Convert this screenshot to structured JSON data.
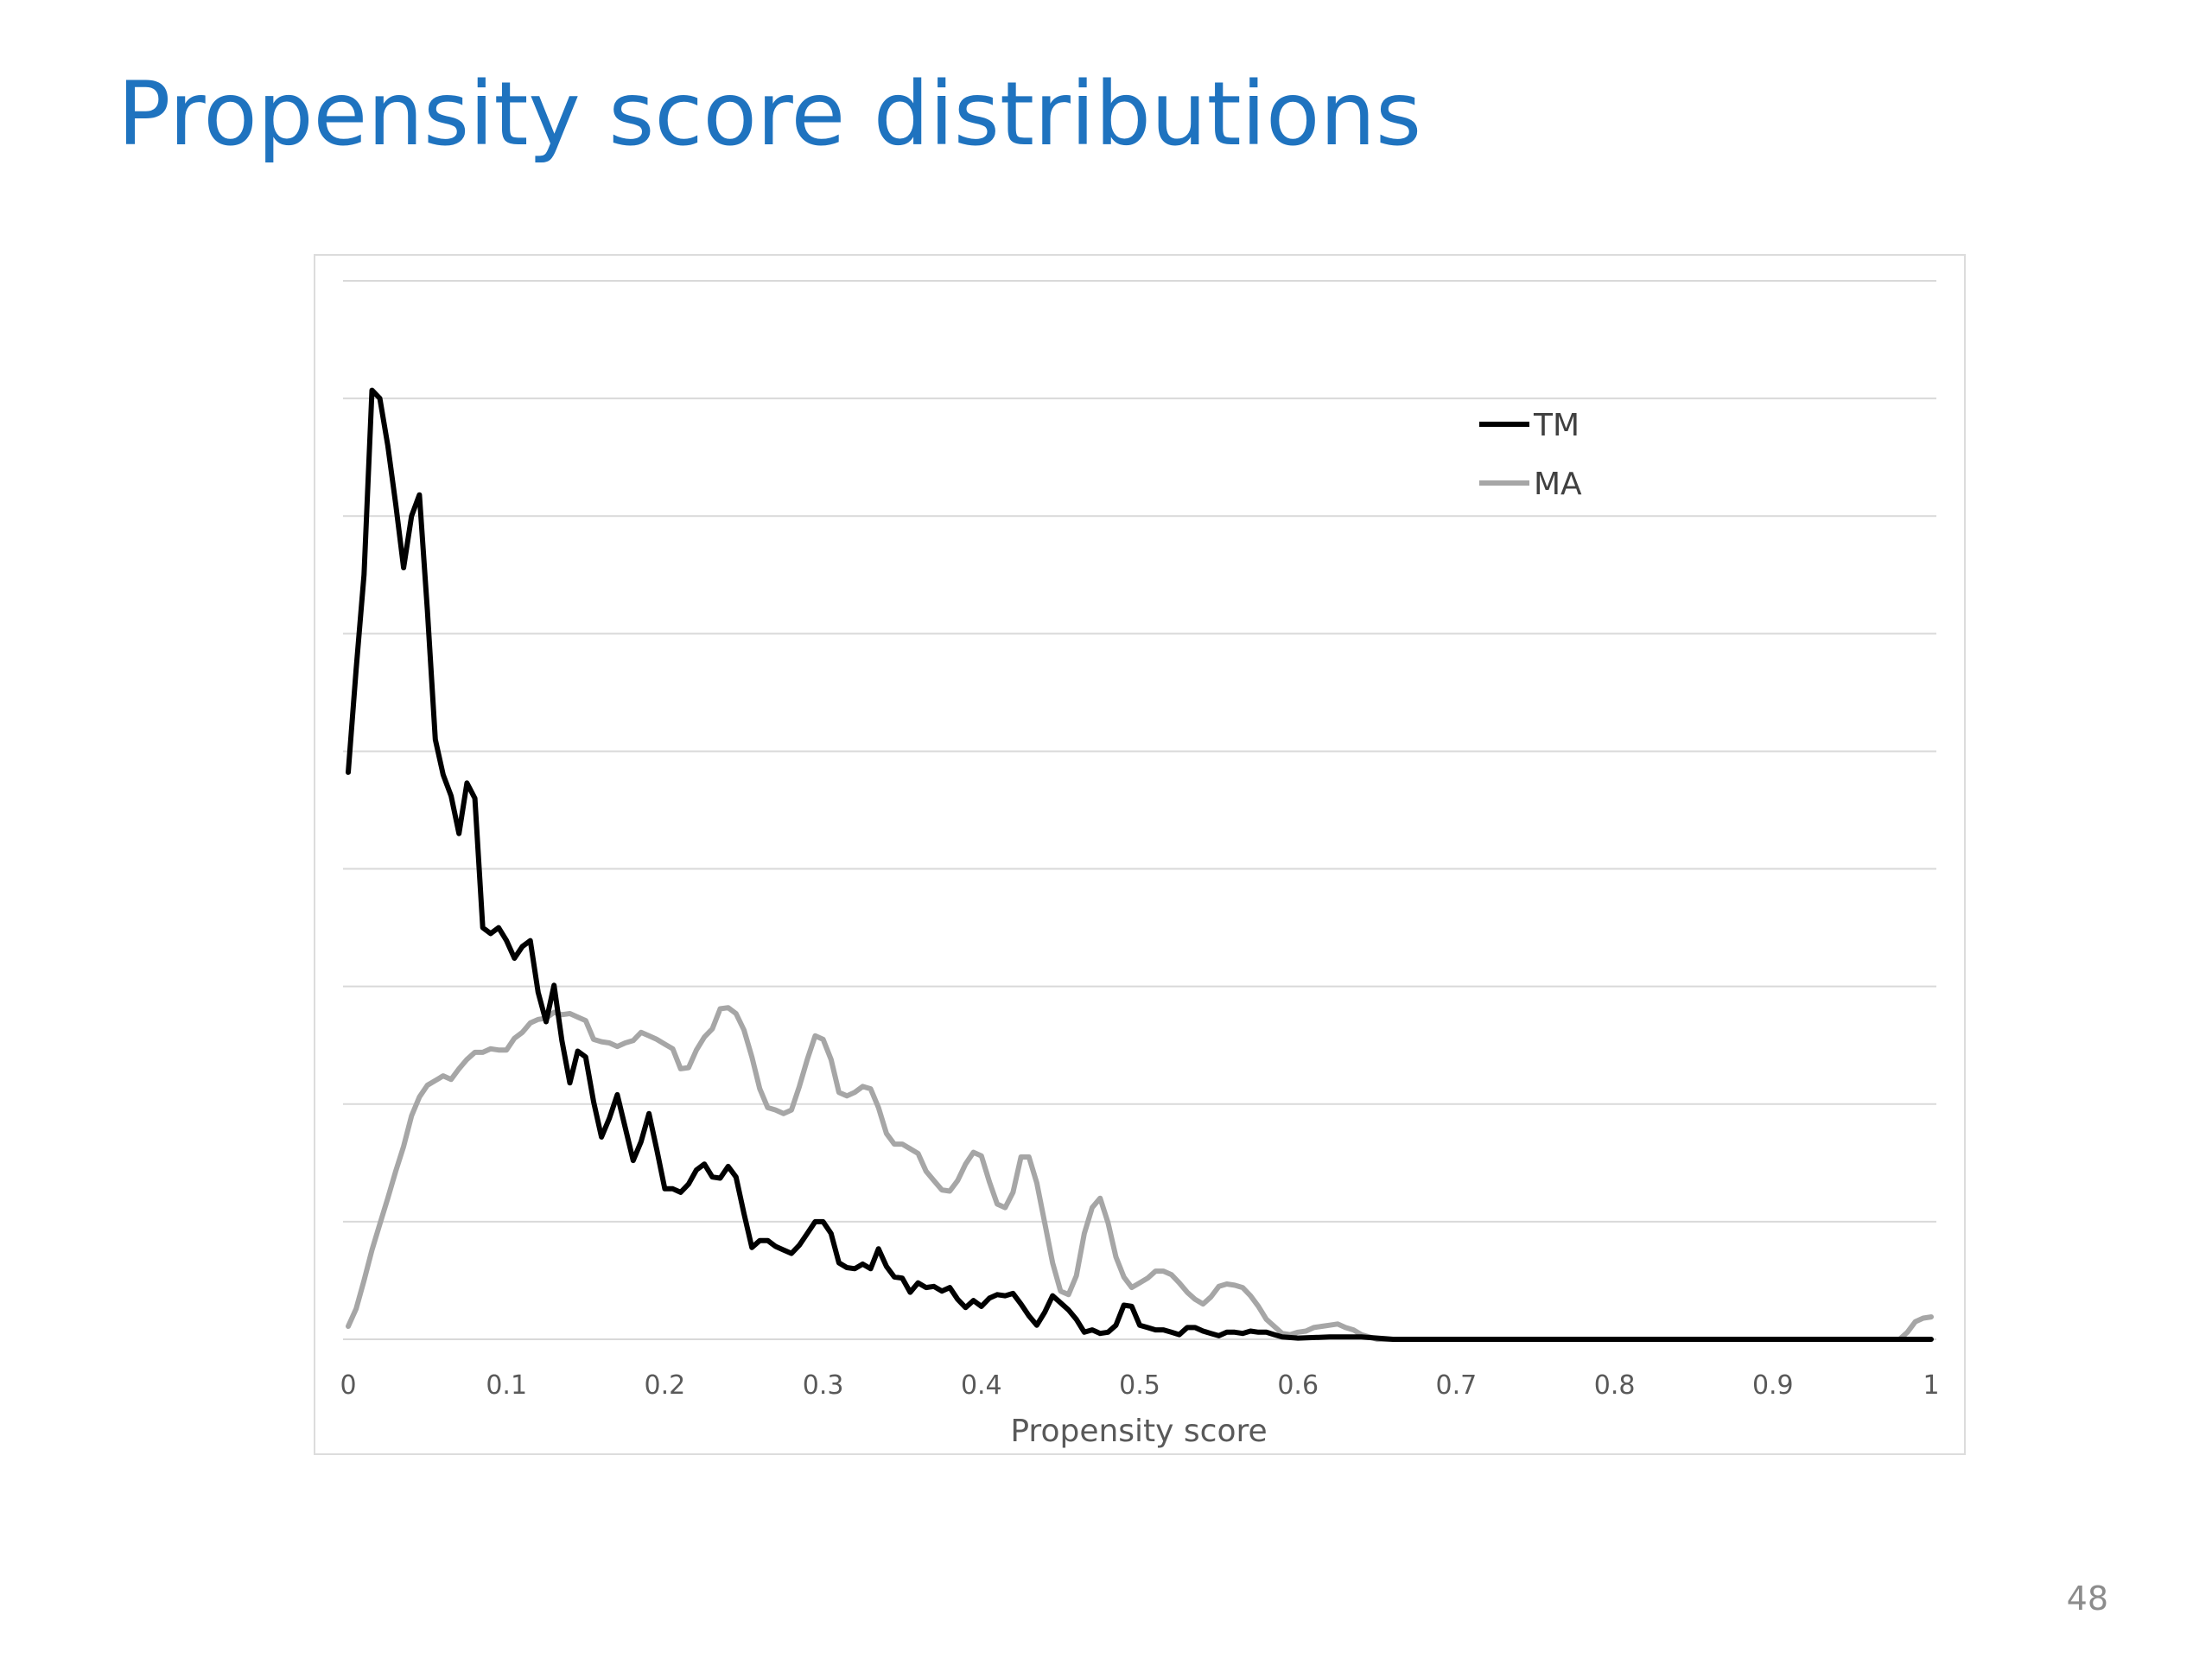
{
  "slide": {
    "title": "Propensity score distributions",
    "page_number": "48"
  },
  "colors": {
    "title": "#1f73bf",
    "series_tm": "#000000",
    "series_ma": "#a6a6a6",
    "gridline": "#d9d9d9",
    "axis_text": "#595959"
  },
  "chart_data": {
    "type": "line",
    "title": "",
    "xlabel": "Propensity score",
    "ylabel": "",
    "xlim": [
      0,
      1
    ],
    "ylim": [
      0,
      9
    ],
    "y_gridlines": [
      0,
      1,
      2,
      3,
      4,
      5,
      6,
      7,
      8,
      9
    ],
    "y_tick_labels_shown": false,
    "grid": "horizontal",
    "legend_position": "top-right",
    "x_ticks": [
      "0",
      "0.1",
      "0.2",
      "0.3",
      "0.4",
      "0.5",
      "0.6",
      "0.7",
      "0.8",
      "0.9",
      "1"
    ],
    "x_tick_values": [
      0,
      0.1,
      0.2,
      0.3,
      0.4,
      0.5,
      0.6,
      0.7,
      0.8,
      0.9,
      1
    ],
    "series": [
      {
        "name": "TM",
        "color": "#000000",
        "x": [
          0,
          0.005,
          0.01,
          0.015,
          0.02,
          0.025,
          0.03,
          0.035,
          0.04,
          0.045,
          0.05,
          0.055,
          0.06,
          0.065,
          0.07,
          0.075,
          0.08,
          0.085,
          0.09,
          0.095,
          0.1,
          0.105,
          0.11,
          0.115,
          0.12,
          0.125,
          0.13,
          0.135,
          0.14,
          0.145,
          0.15,
          0.155,
          0.16,
          0.165,
          0.17,
          0.175,
          0.18,
          0.185,
          0.19,
          0.195,
          0.2,
          0.205,
          0.21,
          0.215,
          0.22,
          0.225,
          0.23,
          0.235,
          0.24,
          0.245,
          0.25,
          0.255,
          0.26,
          0.265,
          0.27,
          0.275,
          0.28,
          0.285,
          0.29,
          0.295,
          0.3,
          0.305,
          0.31,
          0.315,
          0.32,
          0.325,
          0.33,
          0.335,
          0.34,
          0.345,
          0.35,
          0.355,
          0.36,
          0.365,
          0.37,
          0.375,
          0.38,
          0.385,
          0.39,
          0.395,
          0.4,
          0.405,
          0.41,
          0.415,
          0.42,
          0.425,
          0.43,
          0.435,
          0.44,
          0.445,
          0.45,
          0.455,
          0.46,
          0.465,
          0.47,
          0.475,
          0.48,
          0.485,
          0.49,
          0.495,
          0.5,
          0.505,
          0.51,
          0.515,
          0.52,
          0.525,
          0.53,
          0.535,
          0.54,
          0.545,
          0.55,
          0.555,
          0.56,
          0.565,
          0.57,
          0.575,
          0.58,
          0.585,
          0.59,
          0.6,
          0.62,
          0.64,
          0.66,
          0.7,
          0.8,
          0.9,
          1.0
        ],
        "values": [
          4.82,
          5.7,
          6.5,
          8.07,
          8.0,
          7.6,
          7.1,
          6.56,
          7.0,
          7.18,
          6.2,
          5.1,
          4.8,
          4.62,
          4.3,
          4.73,
          4.6,
          3.5,
          3.45,
          3.5,
          3.39,
          3.24,
          3.34,
          3.39,
          2.95,
          2.7,
          3.01,
          2.54,
          2.18,
          2.45,
          2.4,
          2.02,
          1.72,
          1.88,
          2.08,
          1.8,
          1.52,
          1.68,
          1.92,
          1.61,
          1.28,
          1.28,
          1.25,
          1.32,
          1.44,
          1.49,
          1.38,
          1.37,
          1.47,
          1.38,
          1.07,
          0.78,
          0.84,
          0.84,
          0.79,
          0.76,
          0.73,
          0.8,
          0.9,
          1.0,
          1.0,
          0.9,
          0.65,
          0.61,
          0.6,
          0.64,
          0.6,
          0.77,
          0.62,
          0.53,
          0.52,
          0.4,
          0.48,
          0.44,
          0.45,
          0.41,
          0.44,
          0.34,
          0.27,
          0.33,
          0.28,
          0.35,
          0.38,
          0.37,
          0.39,
          0.3,
          0.2,
          0.12,
          0.23,
          0.37,
          0.31,
          0.25,
          0.17,
          0.06,
          0.08,
          0.05,
          0.06,
          0.12,
          0.29,
          0.28,
          0.12,
          0.1,
          0.08,
          0.08,
          0.06,
          0.04,
          0.1,
          0.1,
          0.07,
          0.05,
          0.03,
          0.06,
          0.06,
          0.05,
          0.07,
          0.06,
          0.06,
          0.04,
          0.02,
          0.01,
          0.02,
          0.02,
          0.0,
          0.0,
          0.0,
          0.0,
          0.0
        ]
      },
      {
        "name": "MA",
        "color": "#a6a6a6",
        "x": [
          0,
          0.005,
          0.01,
          0.015,
          0.02,
          0.025,
          0.03,
          0.035,
          0.04,
          0.045,
          0.05,
          0.055,
          0.06,
          0.065,
          0.07,
          0.075,
          0.08,
          0.085,
          0.09,
          0.095,
          0.1,
          0.105,
          0.11,
          0.115,
          0.12,
          0.125,
          0.13,
          0.135,
          0.14,
          0.145,
          0.15,
          0.155,
          0.16,
          0.165,
          0.17,
          0.175,
          0.18,
          0.185,
          0.19,
          0.195,
          0.2,
          0.205,
          0.21,
          0.215,
          0.22,
          0.225,
          0.23,
          0.235,
          0.24,
          0.245,
          0.25,
          0.255,
          0.26,
          0.265,
          0.27,
          0.275,
          0.28,
          0.285,
          0.29,
          0.295,
          0.3,
          0.305,
          0.31,
          0.315,
          0.32,
          0.325,
          0.33,
          0.335,
          0.34,
          0.345,
          0.35,
          0.355,
          0.36,
          0.365,
          0.37,
          0.375,
          0.38,
          0.385,
          0.39,
          0.395,
          0.4,
          0.405,
          0.41,
          0.415,
          0.42,
          0.425,
          0.43,
          0.435,
          0.44,
          0.445,
          0.45,
          0.455,
          0.46,
          0.465,
          0.47,
          0.475,
          0.48,
          0.485,
          0.49,
          0.495,
          0.5,
          0.505,
          0.51,
          0.515,
          0.52,
          0.525,
          0.53,
          0.535,
          0.54,
          0.545,
          0.55,
          0.555,
          0.56,
          0.565,
          0.57,
          0.575,
          0.58,
          0.585,
          0.59,
          0.595,
          0.6,
          0.605,
          0.61,
          0.615,
          0.62,
          0.625,
          0.63,
          0.635,
          0.64,
          0.645,
          0.65,
          0.7,
          0.8,
          0.9,
          0.98,
          0.985,
          0.99,
          0.995,
          1.0
        ],
        "values": [
          0.11,
          0.26,
          0.5,
          0.76,
          0.98,
          1.2,
          1.43,
          1.64,
          1.9,
          2.06,
          2.16,
          2.2,
          2.24,
          2.21,
          2.3,
          2.38,
          2.44,
          2.44,
          2.47,
          2.46,
          2.46,
          2.56,
          2.61,
          2.69,
          2.72,
          2.73,
          2.78,
          2.76,
          2.77,
          2.74,
          2.71,
          2.55,
          2.53,
          2.52,
          2.49,
          2.52,
          2.54,
          2.61,
          2.58,
          2.55,
          2.51,
          2.47,
          2.3,
          2.31,
          2.46,
          2.57,
          2.64,
          2.81,
          2.82,
          2.77,
          2.63,
          2.4,
          2.13,
          1.97,
          1.95,
          1.92,
          1.95,
          2.15,
          2.38,
          2.58,
          2.55,
          2.38,
          2.1,
          2.07,
          2.1,
          2.15,
          2.13,
          1.97,
          1.75,
          1.66,
          1.66,
          1.62,
          1.58,
          1.43,
          1.35,
          1.27,
          1.26,
          1.35,
          1.49,
          1.59,
          1.56,
          1.34,
          1.15,
          1.12,
          1.25,
          1.55,
          1.55,
          1.33,
          0.99,
          0.65,
          0.41,
          0.38,
          0.54,
          0.9,
          1.12,
          1.2,
          0.99,
          0.7,
          0.53,
          0.44,
          0.48,
          0.52,
          0.58,
          0.58,
          0.55,
          0.48,
          0.4,
          0.34,
          0.3,
          0.36,
          0.45,
          0.47,
          0.46,
          0.44,
          0.37,
          0.28,
          0.17,
          0.11,
          0.05,
          0.04,
          0.06,
          0.07,
          0.1,
          0.11,
          0.12,
          0.13,
          0.1,
          0.08,
          0.04,
          0.02,
          0.0,
          0.0,
          0.0,
          0.0,
          0.0,
          0.06,
          0.15,
          0.18,
          0.19
        ]
      }
    ]
  }
}
